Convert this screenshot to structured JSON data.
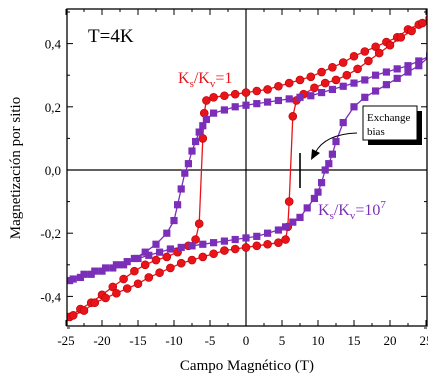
{
  "chart_data": {
    "type": "scatter",
    "xlabel": "Campo Magnético (T)",
    "ylabel": "Magnetización por sitio",
    "xlim": [
      -26,
      26
    ],
    "ylim": [
      -0.5,
      0.5
    ],
    "x_ticks": [
      "-25",
      "-20",
      "-15",
      "-10",
      "-5",
      "0",
      "5",
      "10",
      "15",
      "20",
      "25"
    ],
    "y_ticks": [
      "-0,4",
      "-0,2",
      "0,0",
      "0,2",
      "0,4"
    ],
    "grid": false,
    "annotations": {
      "temperature": "T=4K",
      "red_label": {
        "main": "K",
        "sub1": "s",
        "mid": "/K",
        "sub2": "v",
        "tail": "=1"
      },
      "purple_label": {
        "main": "K",
        "sub1": "s",
        "mid": "/K",
        "sub2": "v",
        "tail": "=10",
        "sup": "7"
      },
      "exchange_bias": [
        "Exchange",
        "bias"
      ]
    },
    "series": [
      {
        "color": "#e8141a",
        "marker": "circle",
        "upper_branch": {
          "x": [
            -26,
            -24.5,
            -23,
            -21.5,
            -20,
            -18.5,
            -17,
            -15.5,
            -14,
            -12.5,
            -11,
            -9.5,
            -8,
            -7,
            -6.5,
            -6,
            -5.8,
            -5.5,
            -4.5,
            -3,
            -1.5,
            0,
            1.5,
            3,
            4.5,
            6,
            7.5,
            9,
            10.5,
            12,
            13.5,
            15,
            16.5,
            18,
            19.5,
            21,
            22.5,
            24,
            25.5
          ],
          "y": [
            -0.485,
            -0.465,
            -0.44,
            -0.42,
            -0.395,
            -0.37,
            -0.345,
            -0.32,
            -0.3,
            -0.285,
            -0.275,
            -0.26,
            -0.24,
            -0.22,
            -0.17,
            0.1,
            0.18,
            0.22,
            0.23,
            0.235,
            0.24,
            0.245,
            0.25,
            0.255,
            0.265,
            0.275,
            0.285,
            0.295,
            0.31,
            0.325,
            0.34,
            0.36,
            0.375,
            0.39,
            0.405,
            0.42,
            0.445,
            0.46,
            0.48
          ]
        },
        "lower_branch": {
          "x": [
            -25.5,
            -24,
            -22.5,
            -21,
            -19.5,
            -18,
            -16.5,
            -15,
            -13.5,
            -12,
            -10.5,
            -9,
            -7.5,
            -6,
            -4.5,
            -3,
            -1.5,
            0,
            1.5,
            3,
            4.5,
            5.5,
            5.8,
            6,
            6.5,
            7,
            8,
            9.5,
            11,
            12.5,
            14,
            15.5,
            17,
            18.5,
            20,
            21.5,
            23,
            24.5,
            26
          ],
          "y": [
            -0.48,
            -0.46,
            -0.445,
            -0.42,
            -0.405,
            -0.39,
            -0.375,
            -0.36,
            -0.34,
            -0.325,
            -0.31,
            -0.295,
            -0.285,
            -0.275,
            -0.265,
            -0.255,
            -0.25,
            -0.245,
            -0.24,
            -0.235,
            -0.23,
            -0.22,
            -0.18,
            -0.1,
            0.17,
            0.22,
            0.24,
            0.26,
            0.275,
            0.285,
            0.3,
            0.32,
            0.345,
            0.37,
            0.395,
            0.42,
            0.44,
            0.465,
            0.485
          ]
        }
      },
      {
        "color": "#7b2fb8",
        "marker": "square",
        "upper_branch": {
          "x": [
            -26,
            -24.5,
            -23,
            -21.5,
            -20,
            -18.5,
            -17,
            -15.5,
            -14,
            -12.5,
            -11,
            -10,
            -9.5,
            -9,
            -8.5,
            -8,
            -7.5,
            -7,
            -6.5,
            -6,
            -5.5,
            -4.5,
            -3,
            -1.5,
            0,
            1.5,
            3,
            4.5,
            6,
            7.5,
            9,
            10.5,
            12,
            13.5,
            15,
            16.5,
            18,
            19.5,
            21,
            22.5,
            24,
            25.5
          ],
          "y": [
            -0.36,
            -0.35,
            -0.34,
            -0.33,
            -0.32,
            -0.31,
            -0.3,
            -0.28,
            -0.26,
            -0.235,
            -0.2,
            -0.16,
            -0.11,
            -0.06,
            -0.01,
            0.02,
            0.06,
            0.09,
            0.12,
            0.14,
            0.16,
            0.18,
            0.19,
            0.2,
            0.205,
            0.21,
            0.215,
            0.22,
            0.225,
            0.23,
            0.235,
            0.245,
            0.255,
            0.265,
            0.275,
            0.285,
            0.3,
            0.31,
            0.32,
            0.33,
            0.345,
            0.36
          ]
        },
        "lower_branch": {
          "x": [
            -25.5,
            -24,
            -22.5,
            -21,
            -19.5,
            -18,
            -16.5,
            -15,
            -13.5,
            -12,
            -10.5,
            -9,
            -7.5,
            -6,
            -4.5,
            -3,
            -1.5,
            0,
            1.5,
            3,
            4.5,
            5.5,
            6.5,
            7.5,
            8.5,
            9.5,
            10,
            10.5,
            11,
            11.5,
            12,
            12.5,
            13.5,
            15,
            16.5,
            18,
            19.5,
            21,
            22.5,
            24,
            25.5
          ],
          "y": [
            -0.36,
            -0.345,
            -0.33,
            -0.32,
            -0.31,
            -0.3,
            -0.29,
            -0.28,
            -0.27,
            -0.26,
            -0.25,
            -0.245,
            -0.24,
            -0.235,
            -0.23,
            -0.225,
            -0.22,
            -0.215,
            -0.21,
            -0.2,
            -0.19,
            -0.18,
            -0.165,
            -0.15,
            -0.12,
            -0.09,
            -0.07,
            -0.04,
            0.0,
            0.02,
            0.05,
            0.09,
            0.15,
            0.2,
            0.23,
            0.25,
            0.27,
            0.29,
            0.31,
            0.33,
            0.36
          ]
        }
      }
    ]
  }
}
